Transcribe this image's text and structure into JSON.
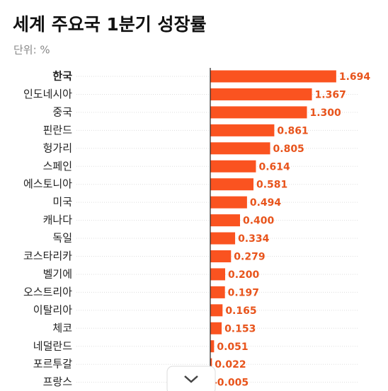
{
  "chart_data": {
    "type": "bar",
    "orientation": "horizontal",
    "title": "세계 주요국 1분기 성장률",
    "subtitle": "단위: %",
    "categories": [
      "한국",
      "인도네시아",
      "중국",
      "핀란드",
      "헝가리",
      "스페인",
      "에스토니아",
      "미국",
      "캐나다",
      "독일",
      "코스타리카",
      "벨기에",
      "오스트리아",
      "이탈리아",
      "체코",
      "네덜란드",
      "포르투갈",
      "프랑스"
    ],
    "values": [
      1.694,
      1.367,
      1.3,
      0.861,
      0.805,
      0.614,
      0.581,
      0.494,
      0.4,
      0.334,
      0.279,
      0.2,
      0.197,
      0.165,
      0.153,
      0.051,
      0.022,
      -0.005
    ],
    "value_labels": [
      "1.694",
      "1.367",
      "1.300",
      "0.861",
      "0.805",
      "0.614",
      "0.581",
      "0.494",
      "0.400",
      "0.334",
      "0.279",
      "0.200",
      "0.197",
      "0.165",
      "0.153",
      "0.051",
      "0.022",
      "-0.005"
    ],
    "color": "#fa5320",
    "label_color": "#e8541c"
  }
}
